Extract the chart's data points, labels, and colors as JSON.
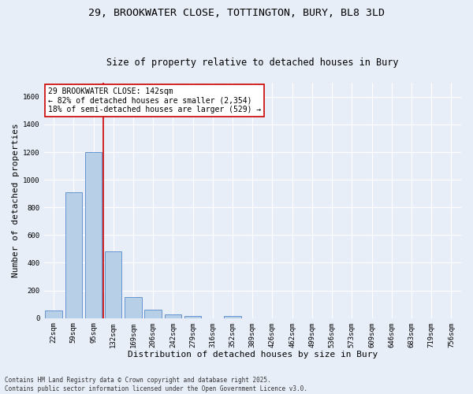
{
  "title_line1": "29, BROOKWATER CLOSE, TOTTINGTON, BURY, BL8 3LD",
  "title_line2": "Size of property relative to detached houses in Bury",
  "xlabel": "Distribution of detached houses by size in Bury",
  "ylabel": "Number of detached properties",
  "background_color": "#e8eef8",
  "bar_color": "#b8cfe8",
  "bar_edge_color": "#5588cc",
  "bins": [
    "22sqm",
    "59sqm",
    "95sqm",
    "132sqm",
    "169sqm",
    "206sqm",
    "242sqm",
    "279sqm",
    "316sqm",
    "352sqm",
    "389sqm",
    "426sqm",
    "462sqm",
    "499sqm",
    "536sqm",
    "573sqm",
    "609sqm",
    "646sqm",
    "683sqm",
    "719sqm",
    "756sqm"
  ],
  "values": [
    55,
    910,
    1200,
    480,
    155,
    60,
    28,
    18,
    0,
    14,
    0,
    0,
    0,
    0,
    0,
    0,
    0,
    0,
    0,
    0,
    0
  ],
  "ylim": [
    0,
    1700
  ],
  "yticks": [
    0,
    200,
    400,
    600,
    800,
    1000,
    1200,
    1400,
    1600
  ],
  "property_bin_index": 3,
  "annotation_title": "29 BROOKWATER CLOSE: 142sqm",
  "annotation_line2": "← 82% of detached houses are smaller (2,354)",
  "annotation_line3": "18% of semi-detached houses are larger (529) →",
  "vline_color": "#cc0000",
  "annotation_box_color": "#ffffff",
  "annotation_box_edge": "#cc0000",
  "footer_line1": "Contains HM Land Registry data © Crown copyright and database right 2025.",
  "footer_line2": "Contains public sector information licensed under the Open Government Licence v3.0.",
  "grid_color": "#ffffff",
  "title_fontsize": 9.5,
  "subtitle_fontsize": 8.5,
  "tick_fontsize": 6.5,
  "label_fontsize": 8,
  "annotation_fontsize": 7,
  "footer_fontsize": 5.5
}
